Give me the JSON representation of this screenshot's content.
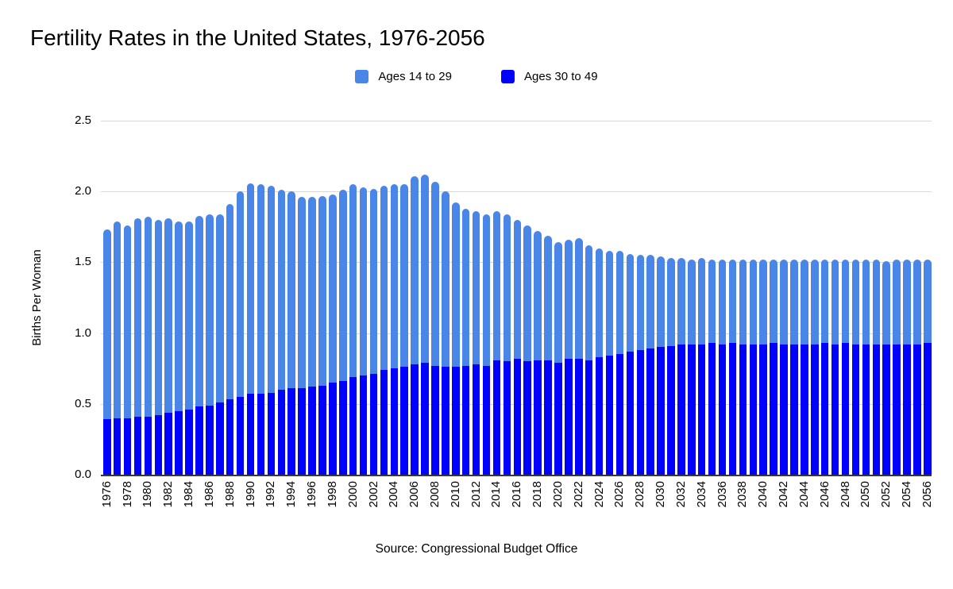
{
  "header": {
    "title": "Fertility Rates in the United States, 1976-2056"
  },
  "footer": {
    "source_note": "Source: Congressional Budget Office"
  },
  "axes": {
    "y_title": "Births Per Woman",
    "y_tick_labels": [
      "0.0",
      "0.5",
      "1.0",
      "1.5",
      "2.0",
      "2.5"
    ]
  },
  "palette": {
    "ages_14_to_29": "#4a86e8",
    "ages_30_to_49": "#0000ff",
    "gridline": "#d9d9d9",
    "axis_line": "#383838",
    "text": "#000000",
    "background": "#ffffff"
  },
  "chart_data": {
    "type": "bar",
    "stacked": true,
    "title": "Fertility Rates in the United States, 1976-2056",
    "xlabel": "",
    "ylabel": "Births Per Woman",
    "ylim": [
      0,
      2.5
    ],
    "yticks": [
      0,
      0.5,
      1.0,
      1.5,
      2.0,
      2.5
    ],
    "grid": true,
    "legend_position": "top",
    "x_label_every": 2,
    "source_note": "Source: Congressional Budget Office",
    "categories": [
      1976,
      1977,
      1978,
      1979,
      1980,
      1981,
      1982,
      1983,
      1984,
      1985,
      1986,
      1987,
      1988,
      1989,
      1990,
      1991,
      1992,
      1993,
      1994,
      1995,
      1996,
      1997,
      1998,
      1999,
      2000,
      2001,
      2002,
      2003,
      2004,
      2005,
      2006,
      2007,
      2008,
      2009,
      2010,
      2011,
      2012,
      2013,
      2014,
      2015,
      2016,
      2017,
      2018,
      2019,
      2020,
      2021,
      2022,
      2023,
      2024,
      2025,
      2026,
      2027,
      2028,
      2029,
      2030,
      2031,
      2032,
      2033,
      2034,
      2035,
      2036,
      2037,
      2038,
      2039,
      2040,
      2041,
      2042,
      2043,
      2044,
      2045,
      2046,
      2047,
      2048,
      2049,
      2050,
      2051,
      2052,
      2053,
      2054,
      2055,
      2056
    ],
    "series": [
      {
        "name": "Ages 14 to 29",
        "color": "#4a86e8",
        "values": [
          1.34,
          1.39,
          1.36,
          1.4,
          1.41,
          1.38,
          1.37,
          1.34,
          1.33,
          1.35,
          1.35,
          1.33,
          1.38,
          1.45,
          1.49,
          1.48,
          1.46,
          1.41,
          1.39,
          1.35,
          1.34,
          1.34,
          1.33,
          1.35,
          1.36,
          1.33,
          1.31,
          1.3,
          1.3,
          1.29,
          1.33,
          1.33,
          1.3,
          1.24,
          1.16,
          1.11,
          1.08,
          1.07,
          1.05,
          1.04,
          0.98,
          0.96,
          0.91,
          0.88,
          0.85,
          0.84,
          0.85,
          0.81,
          0.77,
          0.74,
          0.73,
          0.69,
          0.67,
          0.66,
          0.64,
          0.62,
          0.61,
          0.6,
          0.61,
          0.59,
          0.6,
          0.59,
          0.6,
          0.6,
          0.6,
          0.59,
          0.6,
          0.6,
          0.6,
          0.6,
          0.59,
          0.6,
          0.59,
          0.6,
          0.6,
          0.6,
          0.59,
          0.6,
          0.6,
          0.6,
          0.59
        ]
      },
      {
        "name": "Ages 30 to 49",
        "color": "#0000ff",
        "values": [
          0.39,
          0.4,
          0.4,
          0.41,
          0.41,
          0.42,
          0.44,
          0.45,
          0.46,
          0.48,
          0.49,
          0.51,
          0.53,
          0.55,
          0.57,
          0.57,
          0.58,
          0.6,
          0.61,
          0.61,
          0.62,
          0.63,
          0.65,
          0.66,
          0.69,
          0.7,
          0.71,
          0.74,
          0.75,
          0.76,
          0.78,
          0.79,
          0.77,
          0.76,
          0.76,
          0.77,
          0.78,
          0.77,
          0.81,
          0.8,
          0.82,
          0.8,
          0.81,
          0.81,
          0.79,
          0.82,
          0.82,
          0.81,
          0.83,
          0.84,
          0.85,
          0.87,
          0.88,
          0.89,
          0.9,
          0.91,
          0.92,
          0.92,
          0.92,
          0.93,
          0.92,
          0.93,
          0.92,
          0.92,
          0.92,
          0.93,
          0.92,
          0.92,
          0.92,
          0.92,
          0.93,
          0.92,
          0.93,
          0.92,
          0.92,
          0.92,
          0.92,
          0.92,
          0.92,
          0.92,
          0.93
        ]
      }
    ],
    "totals": [
      1.73,
      1.79,
      1.76,
      1.81,
      1.82,
      1.8,
      1.81,
      1.79,
      1.79,
      1.83,
      1.84,
      1.84,
      1.91,
      2.0,
      2.06,
      2.05,
      2.04,
      2.01,
      2.0,
      1.96,
      1.96,
      1.97,
      1.98,
      2.01,
      2.05,
      2.03,
      2.02,
      2.04,
      2.05,
      2.05,
      2.11,
      2.12,
      2.07,
      2.0,
      1.92,
      1.88,
      1.86,
      1.84,
      1.86,
      1.84,
      1.8,
      1.76,
      1.72,
      1.69,
      1.64,
      1.66,
      1.67,
      1.62,
      1.6,
      1.58,
      1.58,
      1.56,
      1.55,
      1.55,
      1.54,
      1.53,
      1.53,
      1.52,
      1.53,
      1.52,
      1.52,
      1.52,
      1.52,
      1.52,
      1.52,
      1.52,
      1.52,
      1.52,
      1.52,
      1.52,
      1.52,
      1.52,
      1.52,
      1.52,
      1.52,
      1.52,
      1.51,
      1.52,
      1.52,
      1.52,
      1.52
    ]
  }
}
